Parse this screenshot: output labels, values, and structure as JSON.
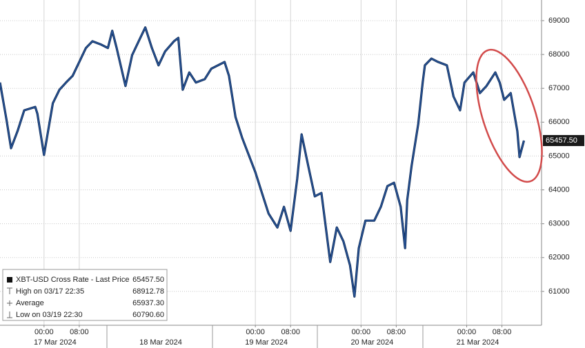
{
  "chart_data": {
    "type": "line",
    "x": [
      "2024-03-16T14:00",
      "2024-03-16T15:30",
      "2024-03-16T16:30",
      "2024-03-16T18:00",
      "2024-03-16T19:30",
      "2024-03-16T22:00",
      "2024-03-16T22:30",
      "2024-03-17T00:00",
      "2024-03-17T02:00",
      "2024-03-17T03:30",
      "2024-03-17T05:00",
      "2024-03-17T06:30",
      "2024-03-17T08:00",
      "2024-03-17T09:30",
      "2024-03-17T11:00",
      "2024-03-17T13:00",
      "2024-03-17T14:30",
      "2024-03-17T15:30",
      "2024-03-17T16:30",
      "2024-03-17T18:30",
      "2024-03-17T20:00",
      "2024-03-17T21:30",
      "2024-03-17T23:00",
      "2024-03-18T00:30",
      "2024-03-18T02:00",
      "2024-03-18T03:30",
      "2024-03-18T05:30",
      "2024-03-18T06:30",
      "2024-03-18T07:30",
      "2024-03-18T09:00",
      "2024-03-18T10:30",
      "2024-03-18T12:30",
      "2024-03-18T14:00",
      "2024-03-18T15:30",
      "2024-03-18T17:00",
      "2024-03-18T18:00",
      "2024-03-18T19:30",
      "2024-03-18T21:00",
      "2024-03-18T22:30",
      "2024-03-19T00:00",
      "2024-03-19T01:30",
      "2024-03-19T03:00",
      "2024-03-19T05:00",
      "2024-03-19T06:30",
      "2024-03-19T08:00",
      "2024-03-19T09:30",
      "2024-03-19T10:30",
      "2024-03-19T12:00",
      "2024-03-19T13:30",
      "2024-03-19T15:00",
      "2024-03-19T16:00",
      "2024-03-19T17:00",
      "2024-03-19T18:30",
      "2024-03-19T20:00",
      "2024-03-19T21:30",
      "2024-03-19T22:30",
      "2024-03-19T23:30",
      "2024-03-20T01:00",
      "2024-03-20T03:00",
      "2024-03-20T04:30",
      "2024-03-20T06:00",
      "2024-03-20T07:30",
      "2024-03-20T09:00",
      "2024-03-20T10:00",
      "2024-03-20T10:30",
      "2024-03-20T11:30",
      "2024-03-20T13:00",
      "2024-03-20T14:00",
      "2024-03-20T14:30",
      "2024-03-20T16:00",
      "2024-03-20T17:30",
      "2024-03-20T19:30",
      "2024-03-20T21:00",
      "2024-03-20T22:30",
      "2024-03-20T23:30",
      "2024-03-21T01:30",
      "2024-03-21T03:00",
      "2024-03-21T04:30",
      "2024-03-21T06:30",
      "2024-03-21T07:30",
      "2024-03-21T08:30",
      "2024-03-21T10:00",
      "2024-03-21T11:30",
      "2024-03-21T12:00",
      "2024-03-21T13:00"
    ],
    "series": [
      {
        "name": "XBT-USD Cross Rate - Last Price",
        "color": "#2a5597",
        "values": [
          67170,
          66050,
          65230,
          65740,
          66350,
          66450,
          66250,
          65030,
          66560,
          66960,
          67170,
          67370,
          67780,
          68190,
          68390,
          68290,
          68190,
          68700,
          68190,
          67070,
          67980,
          68390,
          68800,
          68190,
          67680,
          68090,
          68390,
          68490,
          66960,
          67470,
          67170,
          67270,
          67580,
          67680,
          67780,
          67370,
          66150,
          65540,
          65030,
          64520,
          63910,
          63300,
          62890,
          63500,
          62790,
          64320,
          65640,
          64720,
          63810,
          63910,
          62890,
          61870,
          62890,
          62480,
          61770,
          60850,
          62280,
          63090,
          63090,
          63500,
          64110,
          64210,
          63500,
          62280,
          63700,
          64720,
          65950,
          67170,
          67680,
          67880,
          67780,
          67680,
          66760,
          66350,
          67170,
          67470,
          66860,
          67070,
          67470,
          67170,
          66660,
          66860,
          65740,
          64970,
          65457.5
        ]
      }
    ],
    "xlim": [
      "2024-03-16T14:00",
      "2024-03-21T17:00"
    ],
    "xticks": [
      {
        "value": "2024-03-17T00:00",
        "label": "00:00"
      },
      {
        "value": "2024-03-17T08:00",
        "label": "08:00"
      },
      {
        "value": "2024-03-19T00:00",
        "label": "00:00"
      },
      {
        "value": "2024-03-19T08:00",
        "label": "08:00"
      },
      {
        "value": "2024-03-20T00:00",
        "label": "00:00"
      },
      {
        "value": "2024-03-20T08:00",
        "label": "08:00"
      },
      {
        "value": "2024-03-21T00:00",
        "label": "00:00"
      },
      {
        "value": "2024-03-21T08:00",
        "label": "08:00"
      }
    ],
    "date_ticks": [
      {
        "value": "2024-03-17T00:00",
        "label": "17 Mar 2024"
      },
      {
        "value": "2024-03-18T00:00",
        "label": "18 Mar 2024"
      },
      {
        "value": "2024-03-19T00:00",
        "label": "19 Mar 2024"
      },
      {
        "value": "2024-03-20T00:00",
        "label": "20 Mar 2024"
      },
      {
        "value": "2024-03-21T00:00",
        "label": "21 Mar 2024"
      }
    ],
    "ylim": [
      60000,
      69610
    ],
    "yticks": [
      61000,
      62000,
      63000,
      64000,
      65000,
      66000,
      67000,
      68000,
      69000
    ],
    "grid": true,
    "last_price": {
      "value": 65457.5,
      "label": "65457.50"
    },
    "stats": [
      {
        "label": "High on 03/17 22:35",
        "value": 68912.78
      },
      {
        "label": "Average",
        "value": {
          "value": 65937.3,
          "label": "65937.30"
        }
      },
      {
        "label": "Low on 03/19 22:30",
        "value": {
          "value": 60790.6,
          "label": "60790.60"
        }
      }
    ]
  }
}
